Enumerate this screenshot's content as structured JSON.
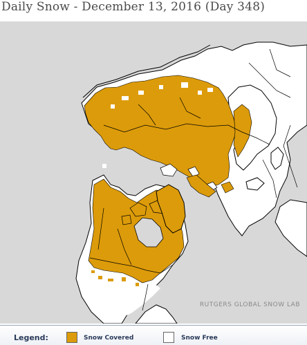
{
  "title": "Daily Snow - December 13, 2016 (Day 348)",
  "watermark": "RUTGERS GLOBAL SNOW LAB",
  "legend": {
    "title": "Legend:",
    "items": [
      {
        "label": "Snow Covered",
        "color": "#dc9b0a"
      },
      {
        "label": "Snow Free",
        "color": "#ffffff"
      }
    ]
  },
  "colors": {
    "snow": "#dc9b0a",
    "land": "#ffffff",
    "water": "#d8d8d8",
    "ice": "#d8d8d8",
    "border": "#000000"
  }
}
